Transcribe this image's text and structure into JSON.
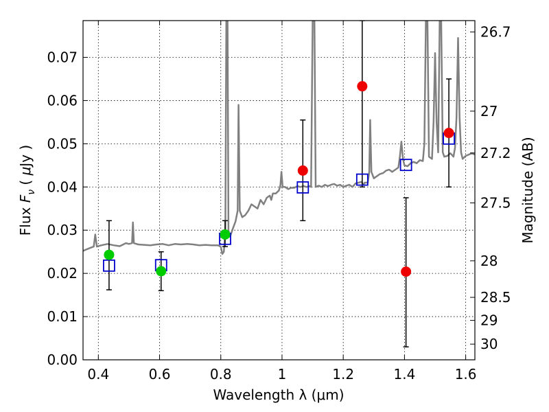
{
  "chart_data": {
    "type": "scatter",
    "xlabel": "Wavelength  λ (μm)",
    "ylabel": "Flux  F_ν  ( μJy )",
    "ylabel_parts": [
      "Flux  ",
      "F",
      "ν",
      "  ( ",
      "μ",
      "Jy )"
    ],
    "y2label": "Magnitude (AB)",
    "xlim": [
      0.35,
      1.63
    ],
    "ylim": [
      0.0,
      0.0785
    ],
    "grid": true,
    "x_ticks": [
      {
        "value": 0.4,
        "label": "0.4"
      },
      {
        "value": 0.6,
        "label": "0.6"
      },
      {
        "value": 0.8,
        "label": "0.8"
      },
      {
        "value": 1.0,
        "label": "1"
      },
      {
        "value": 1.2,
        "label": "1.2"
      },
      {
        "value": 1.4,
        "label": "1.4"
      },
      {
        "value": 1.6,
        "label": "1.6"
      }
    ],
    "y_ticks": [
      {
        "value": 0.0,
        "label": "0.00"
      },
      {
        "value": 0.01,
        "label": "0.01"
      },
      {
        "value": 0.02,
        "label": "0.02"
      },
      {
        "value": 0.03,
        "label": "0.03"
      },
      {
        "value": 0.04,
        "label": "0.04"
      },
      {
        "value": 0.05,
        "label": "0.05"
      },
      {
        "value": 0.06,
        "label": "0.06"
      },
      {
        "value": 0.07,
        "label": "0.07"
      }
    ],
    "y2_ticks": [
      {
        "value": 26.7,
        "label": "26.7"
      },
      {
        "value": 27.0,
        "label": "27"
      },
      {
        "value": 27.2,
        "label": "27.2"
      },
      {
        "value": 27.5,
        "label": "27.5"
      },
      {
        "value": 28.0,
        "label": "28"
      },
      {
        "value": 28.5,
        "label": "28.5"
      },
      {
        "value": 29.0,
        "label": "29"
      },
      {
        "value": 30.0,
        "label": "30"
      }
    ],
    "model_spectrum": {
      "color": "#808080",
      "points": [
        [
          0.35,
          0.0252
        ],
        [
          0.37,
          0.0258
        ],
        [
          0.385,
          0.0262
        ],
        [
          0.39,
          0.029
        ],
        [
          0.395,
          0.0262
        ],
        [
          0.41,
          0.0265
        ],
        [
          0.43,
          0.0268
        ],
        [
          0.45,
          0.0265
        ],
        [
          0.47,
          0.0263
        ],
        [
          0.49,
          0.027
        ],
        [
          0.5,
          0.0268
        ],
        [
          0.51,
          0.027
        ],
        [
          0.513,
          0.0318
        ],
        [
          0.516,
          0.027
        ],
        [
          0.53,
          0.0267
        ],
        [
          0.55,
          0.0266
        ],
        [
          0.57,
          0.0265
        ],
        [
          0.59,
          0.0267
        ],
        [
          0.61,
          0.0268
        ],
        [
          0.63,
          0.0265
        ],
        [
          0.65,
          0.0268
        ],
        [
          0.67,
          0.0267
        ],
        [
          0.69,
          0.0268
        ],
        [
          0.71,
          0.0267
        ],
        [
          0.73,
          0.0265
        ],
        [
          0.75,
          0.0266
        ],
        [
          0.77,
          0.0265
        ],
        [
          0.79,
          0.0265
        ],
        [
          0.8,
          0.0262
        ],
        [
          0.805,
          0.0245
        ],
        [
          0.81,
          0.025
        ],
        [
          0.815,
          0.03
        ],
        [
          0.818,
          0.0785
        ],
        [
          0.822,
          0.0785
        ],
        [
          0.825,
          0.03
        ],
        [
          0.83,
          0.0285
        ],
        [
          0.835,
          0.0295
        ],
        [
          0.84,
          0.0305
        ],
        [
          0.848,
          0.032
        ],
        [
          0.855,
          0.0345
        ],
        [
          0.858,
          0.059
        ],
        [
          0.862,
          0.0345
        ],
        [
          0.87,
          0.033
        ],
        [
          0.88,
          0.0335
        ],
        [
          0.89,
          0.0345
        ],
        [
          0.9,
          0.036
        ],
        [
          0.91,
          0.0355
        ],
        [
          0.92,
          0.035
        ],
        [
          0.93,
          0.037
        ],
        [
          0.94,
          0.036
        ],
        [
          0.95,
          0.0375
        ],
        [
          0.96,
          0.038
        ],
        [
          0.965,
          0.037
        ],
        [
          0.97,
          0.0385
        ],
        [
          0.98,
          0.0385
        ],
        [
          0.99,
          0.0392
        ],
        [
          0.995,
          0.0405
        ],
        [
          0.998,
          0.0435
        ],
        [
          1.002,
          0.04
        ],
        [
          1.01,
          0.04
        ],
        [
          1.02,
          0.0395
        ],
        [
          1.03,
          0.0398
        ],
        [
          1.04,
          0.0398
        ],
        [
          1.05,
          0.0402
        ],
        [
          1.06,
          0.04
        ],
        [
          1.07,
          0.0402
        ],
        [
          1.08,
          0.04
        ],
        [
          1.09,
          0.0402
        ],
        [
          1.095,
          0.04
        ],
        [
          1.1,
          0.0785
        ],
        [
          1.106,
          0.0785
        ],
        [
          1.11,
          0.04
        ],
        [
          1.12,
          0.0403
        ],
        [
          1.13,
          0.04
        ],
        [
          1.14,
          0.0405
        ],
        [
          1.15,
          0.0402
        ],
        [
          1.16,
          0.0405
        ],
        [
          1.17,
          0.0407
        ],
        [
          1.18,
          0.0403
        ],
        [
          1.19,
          0.0405
        ],
        [
          1.2,
          0.04
        ],
        [
          1.21,
          0.0403
        ],
        [
          1.22,
          0.0405
        ],
        [
          1.23,
          0.04
        ],
        [
          1.24,
          0.0408
        ],
        [
          1.25,
          0.041
        ],
        [
          1.26,
          0.0412
        ],
        [
          1.265,
          0.0405
        ],
        [
          1.27,
          0.041
        ],
        [
          1.28,
          0.041
        ],
        [
          1.285,
          0.0435
        ],
        [
          1.288,
          0.0555
        ],
        [
          1.292,
          0.0435
        ],
        [
          1.3,
          0.042
        ],
        [
          1.31,
          0.0425
        ],
        [
          1.32,
          0.043
        ],
        [
          1.33,
          0.0432
        ],
        [
          1.34,
          0.0438
        ],
        [
          1.35,
          0.044
        ],
        [
          1.36,
          0.0435
        ],
        [
          1.37,
          0.044
        ],
        [
          1.38,
          0.0445
        ],
        [
          1.385,
          0.047
        ],
        [
          1.39,
          0.0505
        ],
        [
          1.395,
          0.0465
        ],
        [
          1.4,
          0.045
        ],
        [
          1.41,
          0.0448
        ],
        [
          1.42,
          0.0455
        ],
        [
          1.43,
          0.0458
        ],
        [
          1.44,
          0.0455
        ],
        [
          1.45,
          0.0462
        ],
        [
          1.46,
          0.046
        ],
        [
          1.465,
          0.05
        ],
        [
          1.47,
          0.0785
        ],
        [
          1.475,
          0.0785
        ],
        [
          1.48,
          0.047
        ],
        [
          1.49,
          0.0465
        ],
        [
          1.495,
          0.055
        ],
        [
          1.5,
          0.071
        ],
        [
          1.505,
          0.055
        ],
        [
          1.51,
          0.048
        ],
        [
          1.515,
          0.0785
        ],
        [
          1.52,
          0.0785
        ],
        [
          1.525,
          0.048
        ],
        [
          1.53,
          0.047
        ],
        [
          1.54,
          0.0472
        ],
        [
          1.55,
          0.0478
        ],
        [
          1.56,
          0.047
        ],
        [
          1.565,
          0.049
        ],
        [
          1.57,
          0.056
        ],
        [
          1.575,
          0.0745
        ],
        [
          1.58,
          0.056
        ],
        [
          1.585,
          0.048
        ],
        [
          1.59,
          0.0465
        ],
        [
          1.6,
          0.0472
        ],
        [
          1.61,
          0.0475
        ],
        [
          1.62,
          0.0478
        ],
        [
          1.63,
          0.0475
        ]
      ]
    },
    "series": [
      {
        "marker": "square",
        "color": "#0000cc",
        "points": [
          {
            "x": 0.435,
            "y": 0.0218
          },
          {
            "x": 0.605,
            "y": 0.0219
          },
          {
            "x": 0.814,
            "y": 0.028
          },
          {
            "x": 1.068,
            "y": 0.0399
          },
          {
            "x": 1.262,
            "y": 0.0417
          },
          {
            "x": 1.405,
            "y": 0.0451
          },
          {
            "x": 1.545,
            "y": 0.0512
          }
        ]
      },
      {
        "marker": "circle",
        "color": "#00cc00",
        "points": [
          {
            "x": 0.435,
            "y": 0.0243,
            "err_low": 0.0162,
            "err_high": 0.0322
          },
          {
            "x": 0.605,
            "y": 0.0205,
            "err_low": 0.016,
            "err_high": 0.025
          },
          {
            "x": 0.814,
            "y": 0.029,
            "err_low": 0.0262,
            "err_high": 0.0322
          }
        ]
      },
      {
        "marker": "circle",
        "color": "#ee0000",
        "points": [
          {
            "x": 1.068,
            "y": 0.0438,
            "err_low": 0.0322,
            "err_high": 0.0555
          },
          {
            "x": 1.262,
            "y": 0.0633,
            "err_low": 0.04,
            "err_high": 0.0785
          },
          {
            "x": 1.405,
            "y": 0.0204,
            "err_low": 0.003,
            "err_high": 0.0375
          },
          {
            "x": 1.545,
            "y": 0.0525,
            "err_low": 0.04,
            "err_high": 0.065
          }
        ]
      }
    ]
  }
}
